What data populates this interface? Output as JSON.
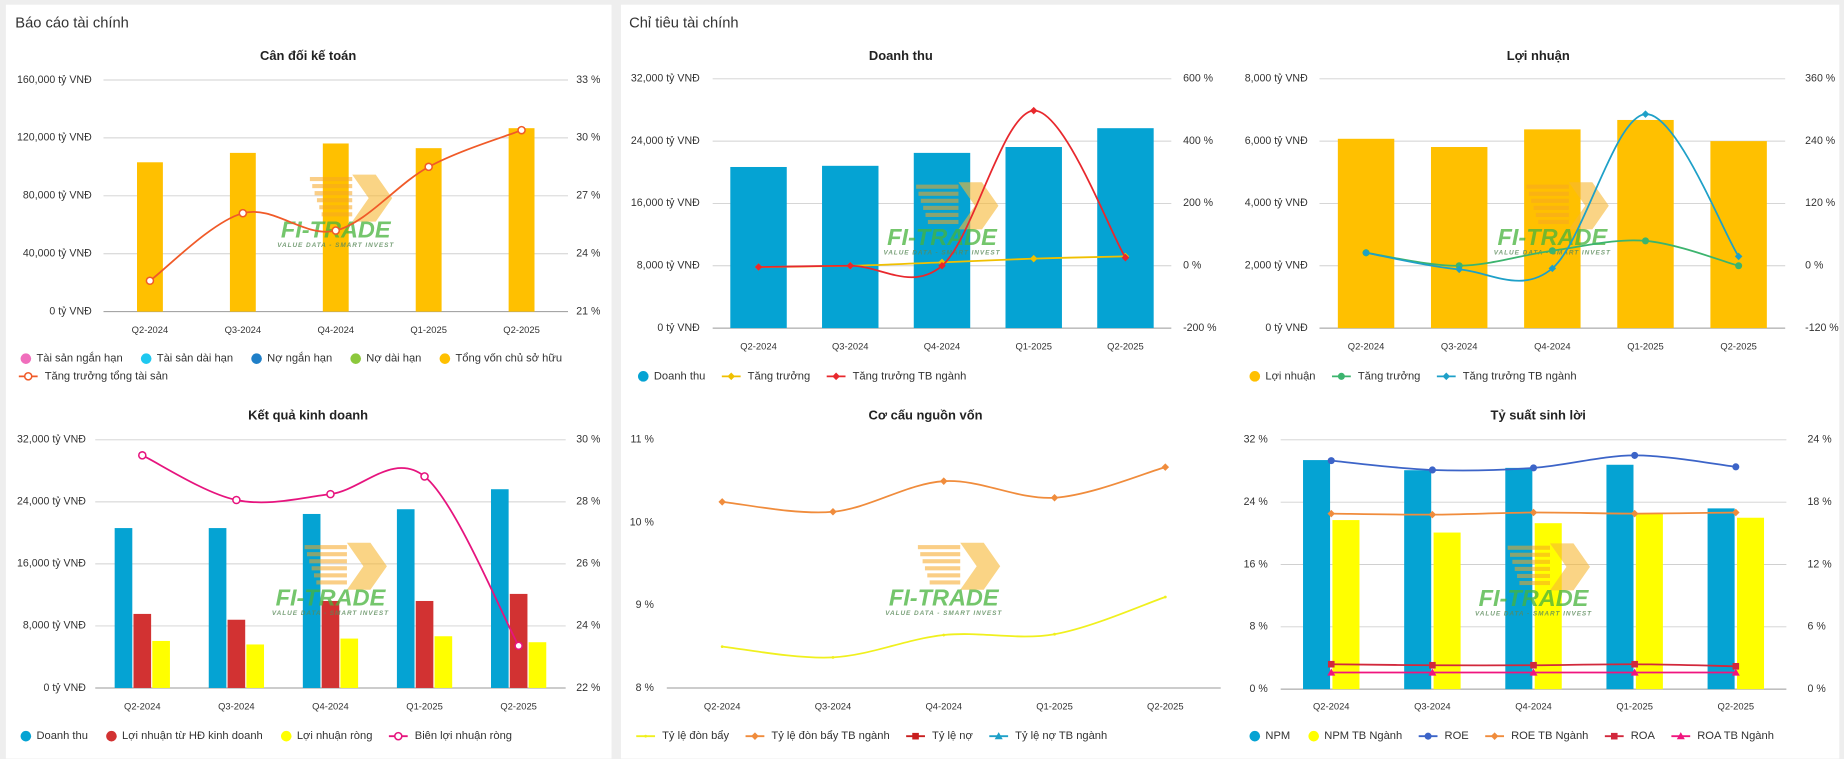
{
  "sections": [
    "Báo cáo tài chính",
    "Chỉ tiêu tài chính"
  ],
  "watermark": {
    "name": "FI-TRADE",
    "tagline": "VALUE DATA - SMART INVEST"
  },
  "chart_data": [
    {
      "type": "combo",
      "title": "Cân đối kế toán",
      "grid": true,
      "categories": [
        "Q2-2024",
        "Q3-2024",
        "Q4-2024",
        "Q1-2025",
        "Q2-2025"
      ],
      "ylim": [
        0,
        160000
      ],
      "yticks": [
        {
          "value": 0,
          "label": "0 tỷ VNĐ"
        },
        {
          "value": 40000,
          "label": "40,000 tỷ VNĐ"
        },
        {
          "value": 80000,
          "label": "80,000 tỷ VNĐ"
        },
        {
          "value": 120000,
          "label": "120,000 tỷ VNĐ"
        },
        {
          "value": 160000,
          "label": "160,000 tỷ VNĐ"
        }
      ],
      "y2lim": [
        21,
        33
      ],
      "y2ticks": [
        {
          "value": 21,
          "label": "21 %"
        },
        {
          "value": 24,
          "label": "24 %"
        },
        {
          "value": 27,
          "label": "27 %"
        },
        {
          "value": 30,
          "label": "30 %"
        },
        {
          "value": 33,
          "label": "33 %"
        }
      ],
      "series": [
        {
          "name": "Tài sản ngắn hạn",
          "type": "bar",
          "color": "#f06ebc",
          "values": [
            null,
            null,
            null,
            null,
            null
          ]
        },
        {
          "name": "Tài sản dài hạn",
          "type": "bar",
          "color": "#1ec8f0",
          "values": [
            null,
            null,
            null,
            null,
            null
          ]
        },
        {
          "name": "Nợ ngắn hạn",
          "type": "bar",
          "color": "#1f7fc8",
          "values": [
            null,
            null,
            null,
            null,
            null
          ]
        },
        {
          "name": "Nợ dài hạn",
          "type": "bar",
          "color": "#8cc83c",
          "values": [
            null,
            null,
            null,
            null,
            null
          ]
        },
        {
          "name": "Tổng vốn chủ sở hữu",
          "type": "bar",
          "color": "#ffc000",
          "values": [
            103150,
            109640,
            116140,
            112900,
            126700
          ]
        },
        {
          "name": "Tăng trưởng tổng tài sản",
          "type": "line",
          "axis": "y2",
          "marker": "hollow-circle",
          "color": "#f05a28",
          "values": [
            22.6,
            26.1,
            25.2,
            28.5,
            30.4
          ]
        }
      ]
    },
    {
      "type": "combo",
      "title": "Doanh thu",
      "grid": true,
      "categories": [
        "Q2-2024",
        "Q3-2024",
        "Q4-2024",
        "Q1-2025",
        "Q2-2025"
      ],
      "ylim": [
        0,
        32000
      ],
      "yticks": [
        {
          "value": 0,
          "label": "0 tỷ VNĐ"
        },
        {
          "value": 8000,
          "label": "8,000 tỷ VNĐ"
        },
        {
          "value": 16000,
          "label": "16,000 tỷ VNĐ"
        },
        {
          "value": 24000,
          "label": "24,000 tỷ VNĐ"
        },
        {
          "value": 32000,
          "label": "32,000 tỷ VNĐ"
        }
      ],
      "y2lim": [
        -200,
        600
      ],
      "y2ticks": [
        {
          "value": -200,
          "label": "-200 %"
        },
        {
          "value": 0,
          "label": "0 %"
        },
        {
          "value": 200,
          "label": "200 %"
        },
        {
          "value": 400,
          "label": "400 %"
        },
        {
          "value": 600,
          "label": "600 %"
        }
      ],
      "series": [
        {
          "name": "Doanh thu",
          "type": "bar",
          "color": "#05a3d3",
          "values": [
            20680,
            20830,
            22490,
            23245,
            25660
          ]
        },
        {
          "name": "Tăng trưởng",
          "type": "line",
          "axis": "y2",
          "marker": "diamond",
          "color": "#f0c000",
          "values": [
            -4,
            0,
            11,
            23,
            30
          ]
        },
        {
          "name": "Tăng trưởng TB ngành",
          "type": "line",
          "axis": "y2",
          "marker": "diamond",
          "color": "#e8282d",
          "values": [
            -4,
            0,
            0,
            498,
            26
          ]
        }
      ]
    },
    {
      "type": "combo",
      "title": "Lợi nhuận",
      "grid": true,
      "categories": [
        "Q2-2024",
        "Q3-2024",
        "Q4-2024",
        "Q1-2025",
        "Q2-2025"
      ],
      "ylim": [
        0,
        8000
      ],
      "yticks": [
        {
          "value": 0,
          "label": "0 tỷ VNĐ"
        },
        {
          "value": 2000,
          "label": "2,000 tỷ VNĐ"
        },
        {
          "value": 4000,
          "label": "4,000 tỷ VNĐ"
        },
        {
          "value": 6000,
          "label": "6,000 tỷ VNĐ"
        },
        {
          "value": 8000,
          "label": "8,000 tỷ VNĐ"
        }
      ],
      "y2lim": [
        -120,
        360
      ],
      "y2ticks": [
        {
          "value": -120,
          "label": "-120 %"
        },
        {
          "value": 0,
          "label": "0 %"
        },
        {
          "value": 120,
          "label": "120 %"
        },
        {
          "value": 240,
          "label": "240 %"
        },
        {
          "value": 360,
          "label": "360 %"
        }
      ],
      "series": [
        {
          "name": "Lợi nhuận",
          "type": "bar",
          "color": "#ffc000",
          "values": [
            6075,
            5811,
            6377,
            6679,
            6000
          ]
        },
        {
          "name": "Tăng trưởng",
          "type": "line",
          "axis": "y2",
          "marker": "circle",
          "color": "#3cb46e",
          "values": [
            25,
            0,
            29,
            48,
            0
          ]
        },
        {
          "name": "Tăng trưởng TB ngành",
          "type": "line",
          "axis": "y2",
          "marker": "diamond",
          "color": "#1ea0c8",
          "values": [
            25,
            -7,
            -5,
            292,
            18
          ]
        }
      ]
    },
    {
      "type": "combo",
      "title": "Kết quả kinh doanh",
      "grid": true,
      "categories": [
        "Q2-2024",
        "Q3-2024",
        "Q4-2024",
        "Q1-2025",
        "Q2-2025"
      ],
      "ylim": [
        0,
        32000
      ],
      "yticks": [
        {
          "value": 0,
          "label": "0 tỷ VNĐ"
        },
        {
          "value": 8000,
          "label": "8,000 tỷ VNĐ"
        },
        {
          "value": 16000,
          "label": "16,000 tỷ VNĐ"
        },
        {
          "value": 24000,
          "label": "24,000 tỷ VNĐ"
        },
        {
          "value": 32000,
          "label": "32,000 tỷ VNĐ"
        }
      ],
      "y2lim": [
        22,
        30
      ],
      "y2ticks": [
        {
          "value": 22,
          "label": "22 %"
        },
        {
          "value": 24,
          "label": "24 %"
        },
        {
          "value": 26,
          "label": "26 %"
        },
        {
          "value": 28,
          "label": "28 %"
        },
        {
          "value": 30,
          "label": "30 %"
        }
      ],
      "series": [
        {
          "name": "Doanh thu",
          "type": "bar",
          "color": "#05a3d3",
          "values": [
            20620,
            20620,
            22440,
            23050,
            25630
          ]
        },
        {
          "name": "Lợi nhuận từ HĐ kinh doanh",
          "type": "bar",
          "color": "#d23232",
          "values": [
            9550,
            8800,
            11220,
            11220,
            12130
          ]
        },
        {
          "name": "Lợi nhuận ròng",
          "type": "bar",
          "color": "#ffff00",
          "values": [
            6066,
            5610,
            6370,
            6670,
            5900
          ]
        },
        {
          "name": "Biên lợi nhuận ròng",
          "type": "line",
          "axis": "y2",
          "marker": "hollow-circle",
          "color": "#e6147e",
          "values": [
            29.5,
            28.06,
            28.25,
            28.82,
            23.36
          ]
        }
      ]
    },
    {
      "type": "combo",
      "title": "Cơ cấu nguồn vốn",
      "grid": false,
      "categories": [
        "Q2-2024",
        "Q3-2024",
        "Q4-2024",
        "Q1-2025",
        "Q2-2025"
      ],
      "ylim": [
        8,
        11
      ],
      "yticks": [
        {
          "value": 8,
          "label": "8 %"
        },
        {
          "value": 9,
          "label": "9 %"
        },
        {
          "value": 10,
          "label": "10 %"
        },
        {
          "value": 11,
          "label": "11 %"
        }
      ],
      "series": [
        {
          "name": "Tỷ lệ đòn bẩy",
          "type": "line",
          "marker": "dot",
          "color": "#f0f01e",
          "values": [
            8.5,
            8.37,
            8.64,
            8.65,
            9.1
          ]
        },
        {
          "name": "Tỷ lệ đòn bẩy TB ngành",
          "type": "line",
          "marker": "diamond",
          "color": "#f08c3c",
          "values": [
            10.25,
            10.13,
            10.5,
            10.3,
            10.67
          ]
        },
        {
          "name": "Tỷ lệ nợ",
          "type": "line",
          "marker": "square",
          "color": "#c81e1e",
          "values": [
            null,
            null,
            null,
            null,
            null
          ]
        },
        {
          "name": "Tỷ lệ nợ TB ngành",
          "type": "line",
          "marker": "triangle",
          "color": "#1ea0c8",
          "values": [
            null,
            null,
            null,
            null,
            null
          ]
        }
      ]
    },
    {
      "type": "combo",
      "title": "Tỷ suất sinh lời",
      "grid": true,
      "categories": [
        "Q2-2024",
        "Q3-2024",
        "Q4-2024",
        "Q1-2025",
        "Q2-2025"
      ],
      "ylim": [
        0,
        32
      ],
      "yticks": [
        {
          "value": 0,
          "label": "0 %"
        },
        {
          "value": 8,
          "label": "8 %"
        },
        {
          "value": 16,
          "label": "16 %"
        },
        {
          "value": 24,
          "label": "24 %"
        },
        {
          "value": 32,
          "label": "32 %"
        }
      ],
      "y2lim": [
        0,
        24
      ],
      "y2ticks": [
        {
          "value": 0,
          "label": "0 %"
        },
        {
          "value": 6,
          "label": "6 %"
        },
        {
          "value": 12,
          "label": "12 %"
        },
        {
          "value": 18,
          "label": "18 %"
        },
        {
          "value": 24,
          "label": "24 %"
        }
      ],
      "series": [
        {
          "name": "NPM",
          "type": "bar",
          "color": "#05a3d3",
          "values": [
            29.4,
            28.1,
            28.4,
            28.8,
            23.2
          ]
        },
        {
          "name": "NPM TB Ngành",
          "type": "bar",
          "color": "#ffff00",
          "values": [
            21.7,
            20.1,
            21.3,
            22.5,
            22.0
          ]
        },
        {
          "name": "ROE",
          "type": "line",
          "axis": "y2",
          "marker": "circle",
          "color": "#3c64c8",
          "values": [
            22.0,
            21.1,
            21.3,
            22.5,
            21.4
          ]
        },
        {
          "name": "ROE TB Ngành",
          "type": "line",
          "axis": "y2",
          "marker": "diamond",
          "color": "#f08c3c",
          "values": [
            16.9,
            16.8,
            17.0,
            16.9,
            17.0
          ]
        },
        {
          "name": "ROA",
          "type": "line",
          "axis": "y2",
          "marker": "square",
          "color": "#d2283c",
          "values": [
            2.4,
            2.3,
            2.3,
            2.4,
            2.2
          ]
        },
        {
          "name": "ROA TB Ngành",
          "type": "line",
          "axis": "y2",
          "marker": "triangle",
          "color": "#f0147e",
          "values": [
            1.6,
            1.6,
            1.6,
            1.6,
            1.6
          ]
        }
      ]
    }
  ]
}
